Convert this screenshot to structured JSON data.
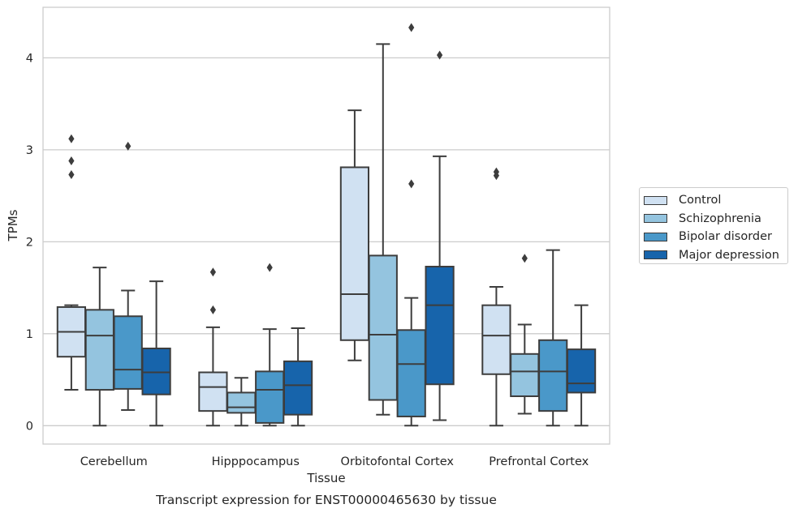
{
  "chart_data": {
    "type": "box",
    "title": "Transcript expression for ENST00000465630 by tissue",
    "xlabel": "Tissue",
    "ylabel": "TPMs",
    "ylim": [
      -0.2,
      4.55
    ],
    "yticks": [
      "0",
      "1",
      "2",
      "3",
      "4"
    ],
    "grid": "horizontal",
    "legend_position": "right",
    "categories": [
      "Cerebellum",
      "Hipppocampus",
      "Orbitofontal Cortex",
      "Prefrontal Cortex"
    ],
    "series": [
      {
        "name": "Control",
        "color": "#d0e1f2",
        "boxes": [
          {
            "whislo": 0.39,
            "q1": 0.75,
            "med": 1.02,
            "q3": 1.29,
            "whishi": 1.31,
            "fliers": [
              2.73,
              2.88,
              3.12
            ]
          },
          {
            "whislo": 0.0,
            "q1": 0.16,
            "med": 0.42,
            "q3": 0.58,
            "whishi": 1.07,
            "fliers": [
              1.26,
              1.67
            ]
          },
          {
            "whislo": 0.71,
            "q1": 0.93,
            "med": 1.43,
            "q3": 2.81,
            "whishi": 3.43,
            "fliers": []
          },
          {
            "whislo": 0.0,
            "q1": 0.56,
            "med": 0.98,
            "q3": 1.31,
            "whishi": 1.51,
            "fliers": [
              2.72,
              2.76
            ]
          }
        ]
      },
      {
        "name": "Schizophrenia",
        "color": "#94c4df",
        "boxes": [
          {
            "whislo": 0.0,
            "q1": 0.39,
            "med": 0.98,
            "q3": 1.26,
            "whishi": 1.72,
            "fliers": []
          },
          {
            "whislo": 0.0,
            "q1": 0.14,
            "med": 0.2,
            "q3": 0.36,
            "whishi": 0.52,
            "fliers": []
          },
          {
            "whislo": 0.12,
            "q1": 0.28,
            "med": 0.99,
            "q3": 1.85,
            "whishi": 4.15,
            "fliers": []
          },
          {
            "whislo": 0.13,
            "q1": 0.32,
            "med": 0.59,
            "q3": 0.78,
            "whishi": 1.1,
            "fliers": [
              1.82
            ]
          }
        ]
      },
      {
        "name": "Bipolar disorder",
        "color": "#4a98c9",
        "boxes": [
          {
            "whislo": 0.17,
            "q1": 0.4,
            "med": 0.61,
            "q3": 1.19,
            "whishi": 1.47,
            "fliers": [
              3.04
            ]
          },
          {
            "whislo": 0.0,
            "q1": 0.03,
            "med": 0.39,
            "q3": 0.59,
            "whishi": 1.05,
            "fliers": [
              1.72
            ]
          },
          {
            "whislo": 0.0,
            "q1": 0.1,
            "med": 0.67,
            "q3": 1.04,
            "whishi": 1.39,
            "fliers": [
              2.63,
              4.33
            ]
          },
          {
            "whislo": 0.0,
            "q1": 0.16,
            "med": 0.59,
            "q3": 0.93,
            "whishi": 1.91,
            "fliers": []
          }
        ]
      },
      {
        "name": "Major depression",
        "color": "#1764ab",
        "boxes": [
          {
            "whislo": 0.0,
            "q1": 0.34,
            "med": 0.58,
            "q3": 0.84,
            "whishi": 1.57,
            "fliers": []
          },
          {
            "whislo": 0.0,
            "q1": 0.12,
            "med": 0.44,
            "q3": 0.7,
            "whishi": 1.06,
            "fliers": []
          },
          {
            "whislo": 0.06,
            "q1": 0.45,
            "med": 1.31,
            "q3": 1.73,
            "whishi": 2.93,
            "fliers": [
              4.03
            ]
          },
          {
            "whislo": 0.0,
            "q1": 0.36,
            "med": 0.46,
            "q3": 0.83,
            "whishi": 1.31,
            "fliers": []
          }
        ]
      }
    ]
  }
}
